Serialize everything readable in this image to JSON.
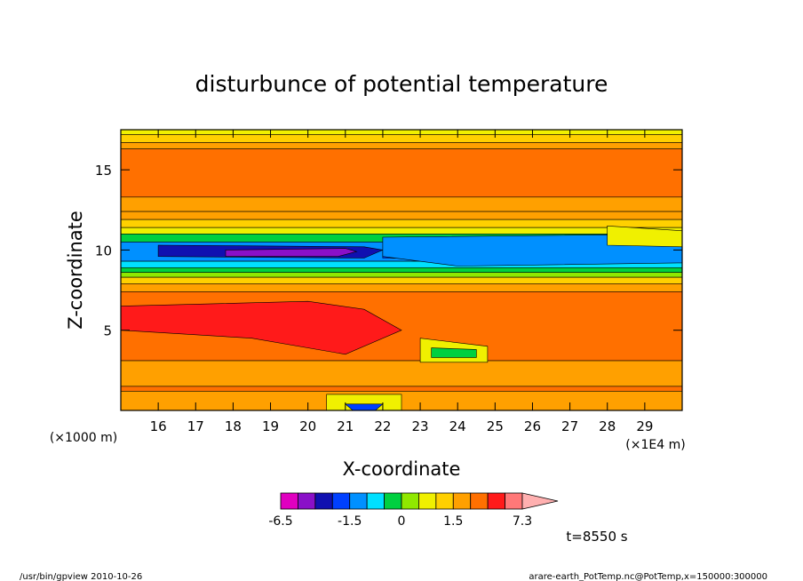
{
  "chart_data": {
    "type": "heatmap",
    "title": "disturbunce of potential temperature",
    "xlabel": "X-coordinate",
    "ylabel": "Z-coordinate",
    "x_unit_left": "(×1000 m)",
    "x_unit_right": "(×1E4 m)",
    "xlim": [
      15.0,
      30.0
    ],
    "ylim": [
      0.0,
      17.5
    ],
    "x_ticks": [
      "16",
      "17",
      "18",
      "19",
      "20",
      "21",
      "22",
      "23",
      "24",
      "25",
      "26",
      "27",
      "28",
      "29"
    ],
    "y_ticks": [
      "5",
      "10",
      "15"
    ],
    "colorbar": {
      "levels": [
        -6.5,
        -5.0,
        -3.5,
        -2.5,
        -1.5,
        -1.0,
        -0.5,
        0.0,
        0.5,
        1.0,
        1.5,
        2.5,
        3.5,
        5.0,
        7.3
      ],
      "colors": [
        "#e000c0",
        "#8a10c8",
        "#1010b0",
        "#0040ff",
        "#0090ff",
        "#00e0ff",
        "#00d040",
        "#90e800",
        "#f0f000",
        "#ffd000",
        "#ffa000",
        "#ff7000",
        "#ff1a1a",
        "#ff7878",
        "#ffb0b0"
      ],
      "tick_labels": [
        "-6.5",
        "-1.5",
        "0",
        "1.5",
        "7.3"
      ]
    },
    "bands": [
      {
        "z": 17.5,
        "value": 0.5
      },
      {
        "z": 17.2,
        "value": 1.0
      },
      {
        "z": 16.7,
        "value": 2.0
      },
      {
        "z": 16.3,
        "value": 3.0
      },
      {
        "z": 13.3,
        "value": 2.0
      },
      {
        "z": 12.4,
        "value": 1.5
      },
      {
        "z": 11.9,
        "value": 1.0
      },
      {
        "z": 11.4,
        "value": 0.5
      },
      {
        "z": 11.0,
        "value": -0.3
      },
      {
        "z": 10.5,
        "value": -1.2
      },
      {
        "z": 9.3,
        "value": -0.8
      },
      {
        "z": 8.9,
        "value": -0.3
      },
      {
        "z": 8.6,
        "value": 0.2
      },
      {
        "z": 8.3,
        "value": 1.0
      },
      {
        "z": 7.9,
        "value": 2.0
      },
      {
        "z": 7.4,
        "value": 3.0
      },
      {
        "z": 3.1,
        "value": 2.0
      },
      {
        "z": 1.5,
        "value": 3.0
      },
      {
        "z": 0.2,
        "value": 1.5
      }
    ],
    "regions": [
      {
        "x": [
          16.0,
          21.5,
          22.0,
          21.5,
          16.0
        ],
        "z": [
          10.3,
          10.2,
          10.0,
          9.5,
          9.6
        ],
        "value": -3.0
      },
      {
        "x": [
          17.8,
          21.0,
          21.3,
          20.8,
          17.8
        ],
        "z": [
          10.0,
          10.1,
          9.9,
          9.6,
          9.6
        ],
        "value": -5.0
      },
      {
        "x": [
          22.0,
          26.5,
          26.8,
          25.5,
          22.0
        ],
        "z": [
          9.9,
          9.9,
          9.6,
          9.4,
          9.5
        ],
        "value": -2.0
      },
      {
        "x": [
          22.0,
          30.0,
          30.0,
          24.0,
          22.0
        ],
        "z": [
          10.8,
          11.0,
          9.2,
          9.0,
          9.6
        ],
        "value": -1.2
      },
      {
        "x": [
          15.0,
          20.0,
          21.5,
          22.5,
          21.0,
          18.5,
          15.0
        ],
        "z": [
          6.5,
          6.8,
          6.3,
          5.0,
          3.5,
          4.5,
          5.0
        ],
        "value": 4.0
      },
      {
        "x": [
          23.0,
          24.8,
          24.8,
          23.0
        ],
        "z": [
          4.5,
          4.0,
          3.0,
          3.0
        ],
        "value": 0.7
      },
      {
        "x": [
          23.3,
          24.5,
          24.5,
          23.3
        ],
        "z": [
          3.9,
          3.8,
          3.3,
          3.3
        ],
        "value": -0.3
      },
      {
        "x": [
          15.0,
          30.0,
          30.0,
          15.0
        ],
        "z": [
          1.2,
          1.2,
          0.0,
          0.0
        ],
        "value": 2.0
      },
      {
        "x": [
          20.5,
          22.5,
          22.5,
          20.5
        ],
        "z": [
          1.0,
          1.0,
          0.0,
          0.0
        ],
        "value": 0.5
      },
      {
        "x": [
          21.0,
          22.0,
          21.8,
          21.2
        ],
        "z": [
          0.4,
          0.4,
          0.0,
          0.0
        ],
        "value": -2.5
      },
      {
        "x": [
          28.0,
          30.0,
          30.0,
          28.0
        ],
        "z": [
          11.5,
          11.2,
          10.2,
          10.3
        ],
        "value": 0.5
      }
    ]
  },
  "time_label": "t=8550 s",
  "footer_left": "/usr/bin/gpview   2010-10-26",
  "footer_right": "arare-earth_PotTemp.nc@PotTemp,x=150000:300000"
}
